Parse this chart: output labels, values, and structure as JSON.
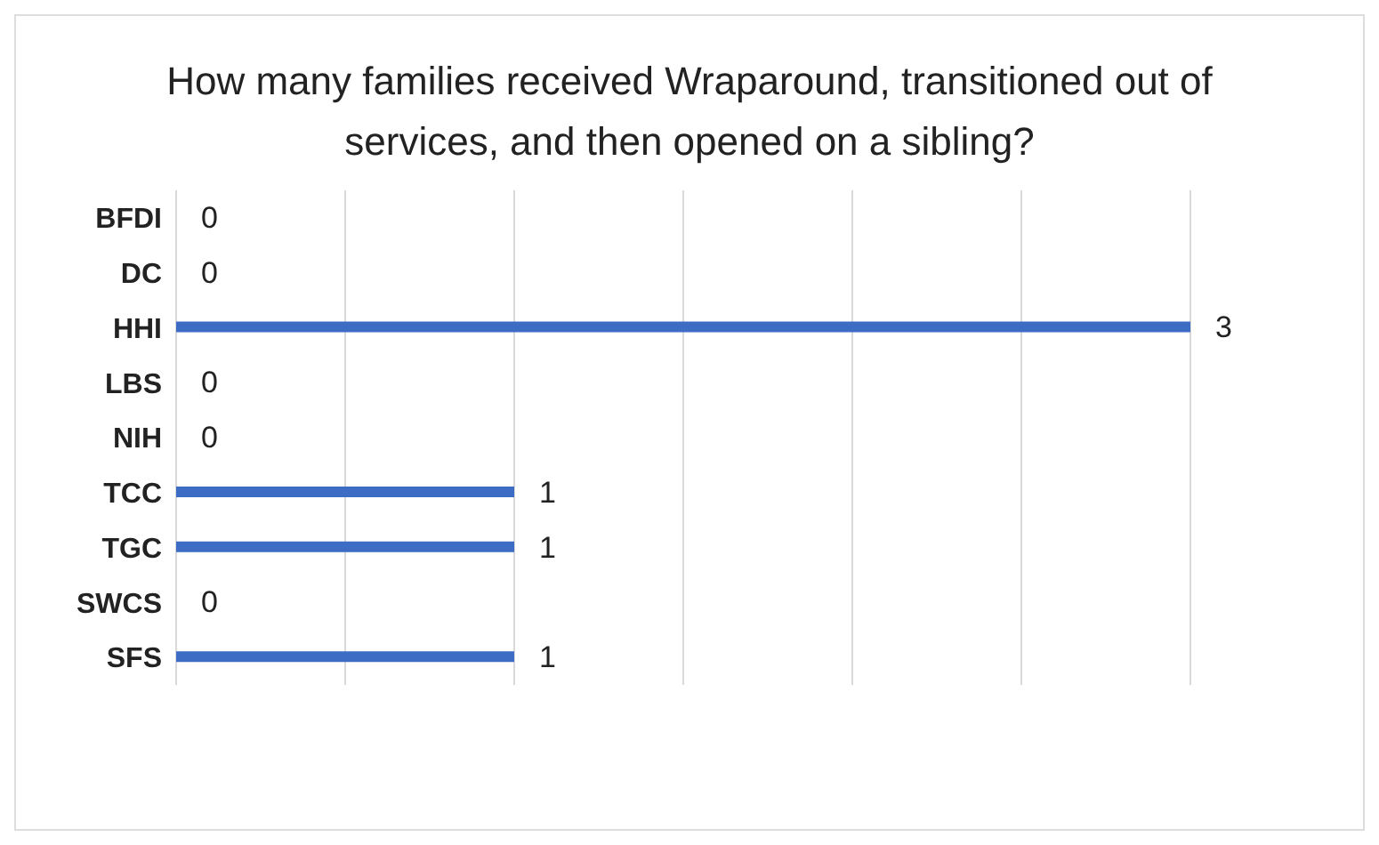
{
  "chart_data": {
    "type": "bar",
    "orientation": "horizontal",
    "title": "How many families received Wraparound, transitioned out of services, and then opened on a sibling?",
    "categories": [
      "BFDI",
      "DC",
      "HHI",
      "LBS",
      "NIH",
      "TCC",
      "TGC",
      "SWCS",
      "SFS"
    ],
    "values": [
      0,
      0,
      3,
      0,
      0,
      1,
      1,
      0,
      1
    ],
    "color": "#3d6cc5",
    "xlim": [
      0,
      3
    ],
    "xticks": [
      {
        "value": 0,
        "label": null
      },
      {
        "value": 0.5,
        "label": null
      },
      {
        "value": 1,
        "label": null
      },
      {
        "value": 1.5,
        "label": null
      },
      {
        "value": 2,
        "label": null
      },
      {
        "value": 2.5,
        "label": null
      },
      {
        "value": 3,
        "label": null
      }
    ],
    "grid": "x",
    "data_labels": true,
    "tick_labels": "y"
  }
}
